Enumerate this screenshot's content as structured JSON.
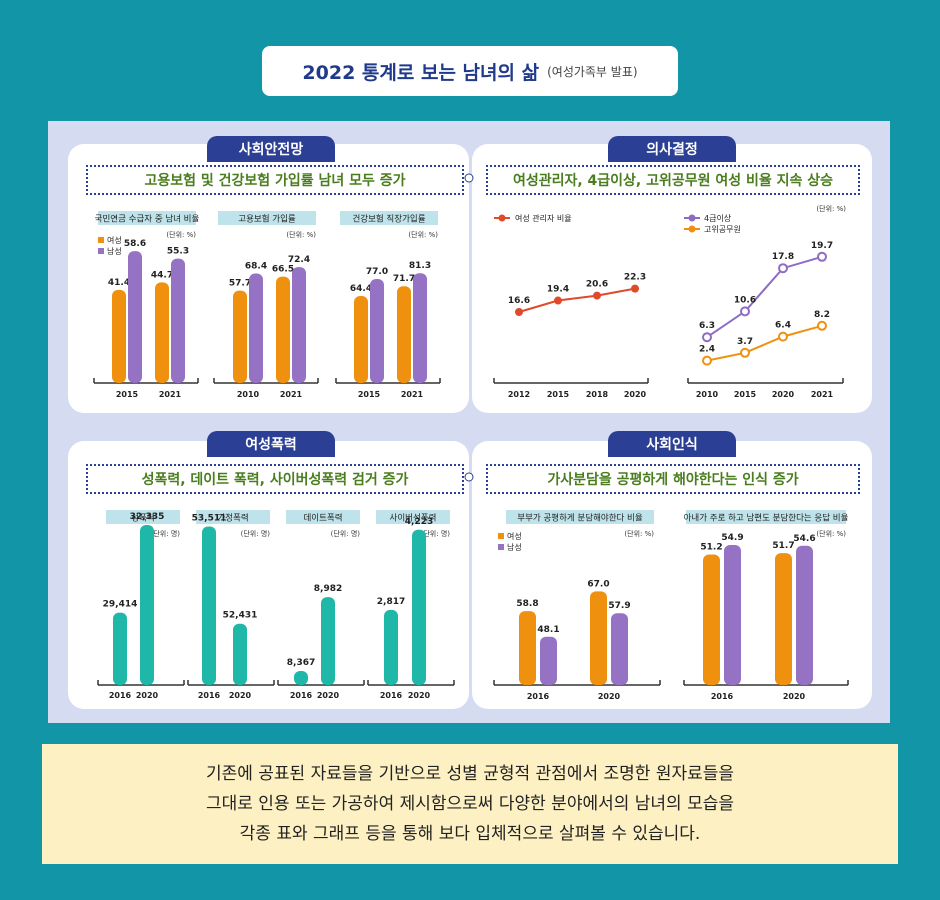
{
  "header": {
    "title": "2022 통계로 보는 남녀의 삶",
    "subtitle": "(여성가족부 발표)"
  },
  "sections": [
    {
      "tab": "사회안전망",
      "headline": "고용보험 및 건강보험 가입률 남녀 모두 증가"
    },
    {
      "tab": "의사결정",
      "headline": "여성관리자, 4급이상, 고위공무원 여성 비율 지속 상승"
    },
    {
      "tab": "여성폭력",
      "headline": "성폭력, 데이트 폭력, 사이버성폭력 검거 증가"
    },
    {
      "tab": "사회인식",
      "headline": "가사분담을 공평하게 해야한다는 인식 증가"
    }
  ],
  "colors": {
    "female": "#f0900f",
    "male": "#9672c5",
    "teal": "#1fb8a8",
    "red_line": "#e04a2a",
    "purple_line": "#8e6cc6",
    "orange_line": "#f0900f"
  },
  "chart_data": [
    {
      "type": "bar",
      "title": "국민연금 수급자 중 남녀 비율",
      "unit": "(단위: %)",
      "categories": [
        "2015",
        "2021"
      ],
      "series": [
        {
          "name": "여성",
          "values": [
            41.4,
            44.7
          ]
        },
        {
          "name": "남성",
          "values": [
            58.6,
            55.3
          ]
        }
      ]
    },
    {
      "type": "bar",
      "title": "고용보험 가입률",
      "unit": "(단위: %)",
      "categories": [
        "2010",
        "2021"
      ],
      "series": [
        {
          "name": "여성",
          "values": [
            57.7,
            66.5
          ]
        },
        {
          "name": "남성",
          "values": [
            68.4,
            72.4
          ]
        }
      ]
    },
    {
      "type": "bar",
      "title": "건강보험 직장가입률",
      "unit": "(단위: %)",
      "categories": [
        "2015",
        "2021"
      ],
      "series": [
        {
          "name": "여성",
          "values": [
            64.4,
            71.7
          ]
        },
        {
          "name": "남성",
          "values": [
            77.0,
            81.3
          ]
        }
      ]
    },
    {
      "type": "line",
      "categories": [
        "2012",
        "2015",
        "2018",
        "2020"
      ],
      "series": [
        {
          "name": "여성 관리자 비율",
          "values": [
            16.6,
            19.4,
            20.6,
            22.3
          ]
        }
      ]
    },
    {
      "type": "line",
      "unit": "(단위: %)",
      "categories": [
        "2010",
        "2015",
        "2020",
        "2021"
      ],
      "series": [
        {
          "name": "4급이상",
          "values": [
            6.3,
            10.6,
            17.8,
            19.7
          ]
        },
        {
          "name": "고위공무원",
          "values": [
            2.4,
            3.7,
            6.4,
            8.2
          ]
        }
      ]
    },
    {
      "type": "bar",
      "title": "성폭력",
      "unit": "(단위: 명)",
      "categories": [
        "2016",
        "2020"
      ],
      "values": [
        29414,
        32335
      ],
      "labels": [
        "29,414",
        "32,335"
      ]
    },
    {
      "type": "bar",
      "title": "가정폭력",
      "unit": "(단위: 명)",
      "categories": [
        "2016",
        "2020"
      ],
      "values": [
        53511,
        52431
      ],
      "labels": [
        "53,511",
        "52,431"
      ]
    },
    {
      "type": "bar",
      "title": "데이트폭력",
      "unit": "(단위: 명)",
      "categories": [
        "2016",
        "2020"
      ],
      "values": [
        8367,
        8982
      ],
      "labels": [
        "8,367",
        "8,982"
      ]
    },
    {
      "type": "bar",
      "title": "사이버성폭력",
      "unit": "(단위: 명)",
      "categories": [
        "2016",
        "2020"
      ],
      "values": [
        2817,
        4223
      ],
      "labels": [
        "2,817",
        "4,223"
      ]
    },
    {
      "type": "bar",
      "title": "부부가 공평하게 분담해야한다 비율",
      "unit": "(단위: %)",
      "categories": [
        "2016",
        "2020"
      ],
      "series": [
        {
          "name": "여성",
          "values": [
            58.8,
            67.0
          ]
        },
        {
          "name": "남성",
          "values": [
            48.1,
            57.9
          ]
        }
      ]
    },
    {
      "type": "bar",
      "title": "아내가 주로 하고 남편도 분담한다는 응답 비율",
      "unit": "(단위: %)",
      "categories": [
        "2016",
        "2020"
      ],
      "series": [
        {
          "name": "여성",
          "values": [
            51.2,
            51.7
          ]
        },
        {
          "name": "남성",
          "values": [
            54.9,
            54.6
          ]
        }
      ]
    }
  ],
  "legend": {
    "female": "여성",
    "male": "남성"
  },
  "footer": {
    "line1": "기존에 공표된 자료들을 기반으로 성별 균형적 관점에서 조명한 원자료들을",
    "line2": "그대로 인용 또는 가공하여 제시함으로써 다양한 분야에서의 남녀의 모습을",
    "line3": "각종 표와 그래프 등을 통해 보다 입체적으로 살펴볼 수 있습니다."
  }
}
